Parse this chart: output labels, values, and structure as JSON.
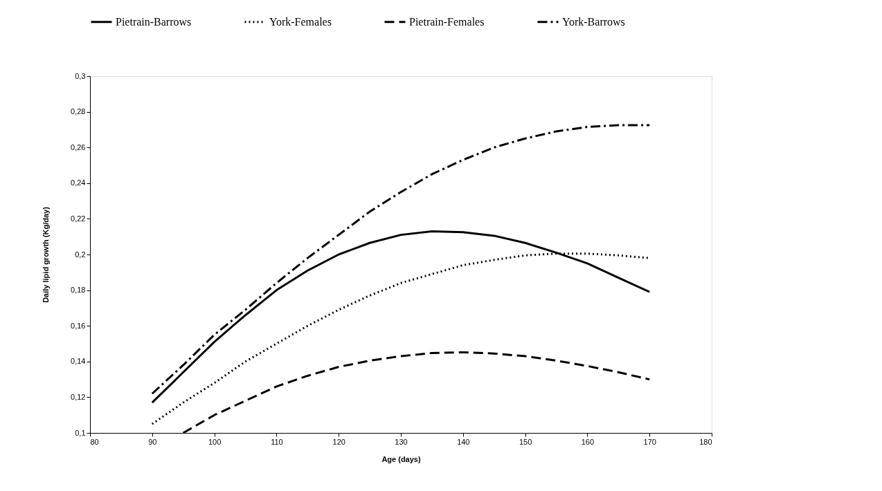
{
  "chart_data": {
    "type": "line",
    "xlabel": "Age (days)",
    "ylabel": "Daily lipid growth (Kg/day)",
    "x": [
      90,
      95,
      100,
      105,
      110,
      115,
      120,
      125,
      130,
      135,
      140,
      145,
      150,
      155,
      160,
      165,
      170
    ],
    "series": [
      {
        "name": "Pietrain-Barrows",
        "color": "#000000",
        "line_style": "solid",
        "values": [
          0.117,
          0.134,
          0.151,
          0.166,
          0.18,
          0.191,
          0.2,
          0.2065,
          0.211,
          0.213,
          0.2125,
          0.2105,
          0.2065,
          0.201,
          0.195,
          0.187,
          0.179
        ]
      },
      {
        "name": "York-Females",
        "color": "#000000",
        "line_style": "dotted",
        "values": [
          0.105,
          0.117,
          0.128,
          0.14,
          0.15,
          0.16,
          0.169,
          0.177,
          0.184,
          0.189,
          0.194,
          0.197,
          0.1995,
          0.2005,
          0.2005,
          0.1995,
          0.198
        ]
      },
      {
        "name": "Pietrain-Females",
        "color": "#000000",
        "line_style": "dashed",
        "values": [
          null,
          0.1,
          0.11,
          0.118,
          0.126,
          0.132,
          0.137,
          0.1405,
          0.143,
          0.1448,
          0.1452,
          0.1445,
          0.143,
          0.1405,
          0.1375,
          0.134,
          0.13
        ]
      },
      {
        "name": "York-Barrows",
        "color": "#000000",
        "line_style": "dashdot",
        "values": [
          0.122,
          0.138,
          0.155,
          0.169,
          0.184,
          0.198,
          0.211,
          0.224,
          0.235,
          0.245,
          0.253,
          0.26,
          0.265,
          0.269,
          0.2715,
          0.2725,
          0.2725
        ]
      }
    ],
    "xlim": [
      80,
      180
    ],
    "xticks": [
      80,
      90,
      100,
      110,
      120,
      130,
      140,
      150,
      160,
      170,
      180
    ],
    "ylim": [
      0.1,
      0.3
    ],
    "yticks": [
      {
        "value": 0.1,
        "label": "0,1"
      },
      {
        "value": 0.12,
        "label": "0,12"
      },
      {
        "value": 0.14,
        "label": "0,14"
      },
      {
        "value": 0.16,
        "label": "0,16"
      },
      {
        "value": 0.18,
        "label": "0,18"
      },
      {
        "value": 0.2,
        "label": "0,2"
      },
      {
        "value": 0.22,
        "label": "0,22"
      },
      {
        "value": 0.24,
        "label": "0,24"
      },
      {
        "value": 0.26,
        "label": "0,26"
      },
      {
        "value": 0.28,
        "label": "0,28"
      },
      {
        "value": 0.3,
        "label": "0,3"
      }
    ],
    "grid": false,
    "legend": "top",
    "marker": "none"
  }
}
